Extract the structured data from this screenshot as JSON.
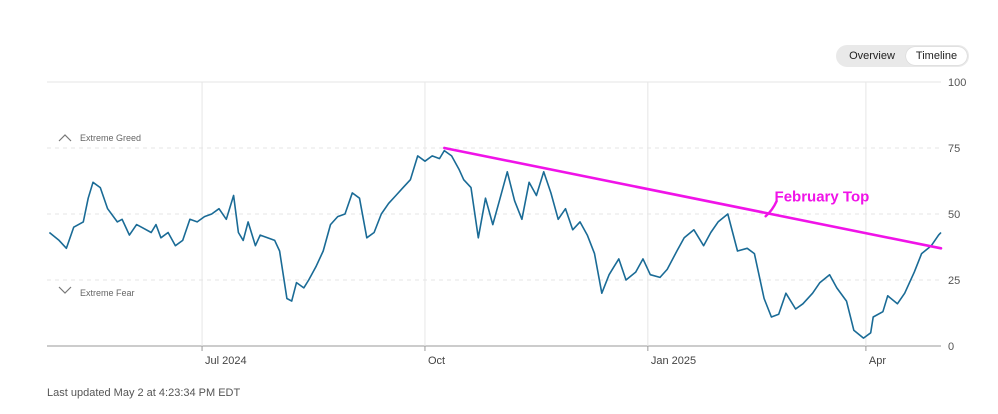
{
  "view_toggle": {
    "options": [
      "Overview",
      "Timeline"
    ],
    "selected": "Timeline"
  },
  "footer": {
    "updated": "Last updated May 2 at 4:23:34 PM EDT"
  },
  "colors": {
    "series": "#1a6b96",
    "trend": "#f013e8",
    "grid": "#e6e6e6",
    "axis": "#888888"
  },
  "chart_data": {
    "type": "line",
    "x_range": [
      "2024-04-28",
      "2025-05-02"
    ],
    "ylim": [
      0,
      100
    ],
    "y_ticks": [
      0,
      25,
      50,
      75,
      100
    ],
    "x_ticks": [
      {
        "date": "2024-07-01",
        "label": "Jul 2024"
      },
      {
        "date": "2024-10-01",
        "label": "Oct"
      },
      {
        "date": "2025-01-01",
        "label": "Jan 2025"
      },
      {
        "date": "2025-04-01",
        "label": "Apr"
      }
    ],
    "zones": [
      {
        "label": "Extreme Greed",
        "level": 75,
        "icon": "chevron-up-icon"
      },
      {
        "label": "Extreme Fear",
        "level": 25,
        "icon": "chevron-down-icon"
      }
    ],
    "series": [
      {
        "x": [
          "2024-04-29",
          "2024-05-03",
          "2024-05-06",
          "2024-05-09",
          "2024-05-13",
          "2024-05-15",
          "2024-05-17",
          "2024-05-20",
          "2024-05-23",
          "2024-05-27",
          "2024-05-29",
          "2024-06-01",
          "2024-06-04",
          "2024-06-06",
          "2024-06-10",
          "2024-06-12",
          "2024-06-14",
          "2024-06-17",
          "2024-06-20",
          "2024-06-23",
          "2024-06-26",
          "2024-06-29",
          "2024-07-02",
          "2024-07-05",
          "2024-07-08",
          "2024-07-11",
          "2024-07-14",
          "2024-07-16",
          "2024-07-18",
          "2024-07-20",
          "2024-07-23",
          "2024-07-25",
          "2024-07-28",
          "2024-07-31",
          "2024-08-02",
          "2024-08-05",
          "2024-08-07",
          "2024-08-09",
          "2024-08-12",
          "2024-08-14",
          "2024-08-17",
          "2024-08-20",
          "2024-08-23",
          "2024-08-26",
          "2024-08-29",
          "2024-09-01",
          "2024-09-04",
          "2024-09-07",
          "2024-09-10",
          "2024-09-13",
          "2024-09-16",
          "2024-09-19",
          "2024-09-22",
          "2024-09-25",
          "2024-09-28",
          "2024-10-01",
          "2024-10-04",
          "2024-10-07",
          "2024-10-09",
          "2024-10-12",
          "2024-10-15",
          "2024-10-17",
          "2024-10-20",
          "2024-10-23",
          "2024-10-26",
          "2024-10-29",
          "2024-11-01",
          "2024-11-04",
          "2024-11-07",
          "2024-11-10",
          "2024-11-13",
          "2024-11-16",
          "2024-11-19",
          "2024-11-22",
          "2024-11-25",
          "2024-11-28",
          "2024-12-01",
          "2024-12-04",
          "2024-12-07",
          "2024-12-10",
          "2024-12-13",
          "2024-12-16",
          "2024-12-18",
          "2024-12-20",
          "2024-12-23",
          "2024-12-27",
          "2024-12-30",
          "2025-01-02",
          "2025-01-06",
          "2025-01-09",
          "2025-01-13",
          "2025-01-16",
          "2025-01-20",
          "2025-01-24",
          "2025-01-27",
          "2025-01-30",
          "2025-02-03",
          "2025-02-07",
          "2025-02-11",
          "2025-02-14",
          "2025-02-18",
          "2025-02-21",
          "2025-02-24",
          "2025-02-27",
          "2025-03-03",
          "2025-03-06",
          "2025-03-10",
          "2025-03-13",
          "2025-03-17",
          "2025-03-20",
          "2025-03-24",
          "2025-03-27",
          "2025-03-31",
          "2025-04-03",
          "2025-04-04",
          "2025-04-08",
          "2025-04-10",
          "2025-04-14",
          "2025-04-17",
          "2025-04-21",
          "2025-04-24",
          "2025-04-28",
          "2025-05-01",
          "2025-05-02"
        ],
        "y": [
          43,
          40,
          37,
          45,
          47,
          56,
          62,
          60,
          52,
          47,
          48,
          42,
          46,
          45,
          43,
          46,
          41,
          43,
          38,
          40,
          48,
          47,
          49,
          50,
          52,
          48,
          57,
          43,
          40,
          47,
          38,
          42,
          41,
          40,
          36,
          18,
          17,
          24,
          22,
          25,
          30,
          36,
          46,
          49,
          50,
          58,
          56,
          41,
          43,
          50,
          54,
          57,
          60,
          63,
          72,
          70,
          72,
          71,
          74,
          72,
          67,
          63,
          60,
          41,
          56,
          46,
          56,
          66,
          55,
          48,
          62,
          57,
          66,
          58,
          48,
          52,
          44,
          47,
          42,
          35,
          20,
          27,
          30,
          33,
          25,
          28,
          33,
          27,
          26,
          29,
          36,
          41,
          44,
          38,
          43,
          47,
          50,
          36,
          37,
          35,
          18,
          11,
          12,
          20,
          14,
          16,
          20,
          24,
          27,
          22,
          17,
          6,
          3,
          5,
          11,
          13,
          19,
          16,
          20,
          28,
          35,
          38,
          42,
          43
        ]
      }
    ],
    "trendline": {
      "start": [
        "2024-10-09",
        75
      ],
      "end": [
        "2025-05-02",
        37
      ]
    },
    "annotations": [
      {
        "text": "February Top",
        "date": "2025-02-19",
        "value": 48
      }
    ]
  }
}
